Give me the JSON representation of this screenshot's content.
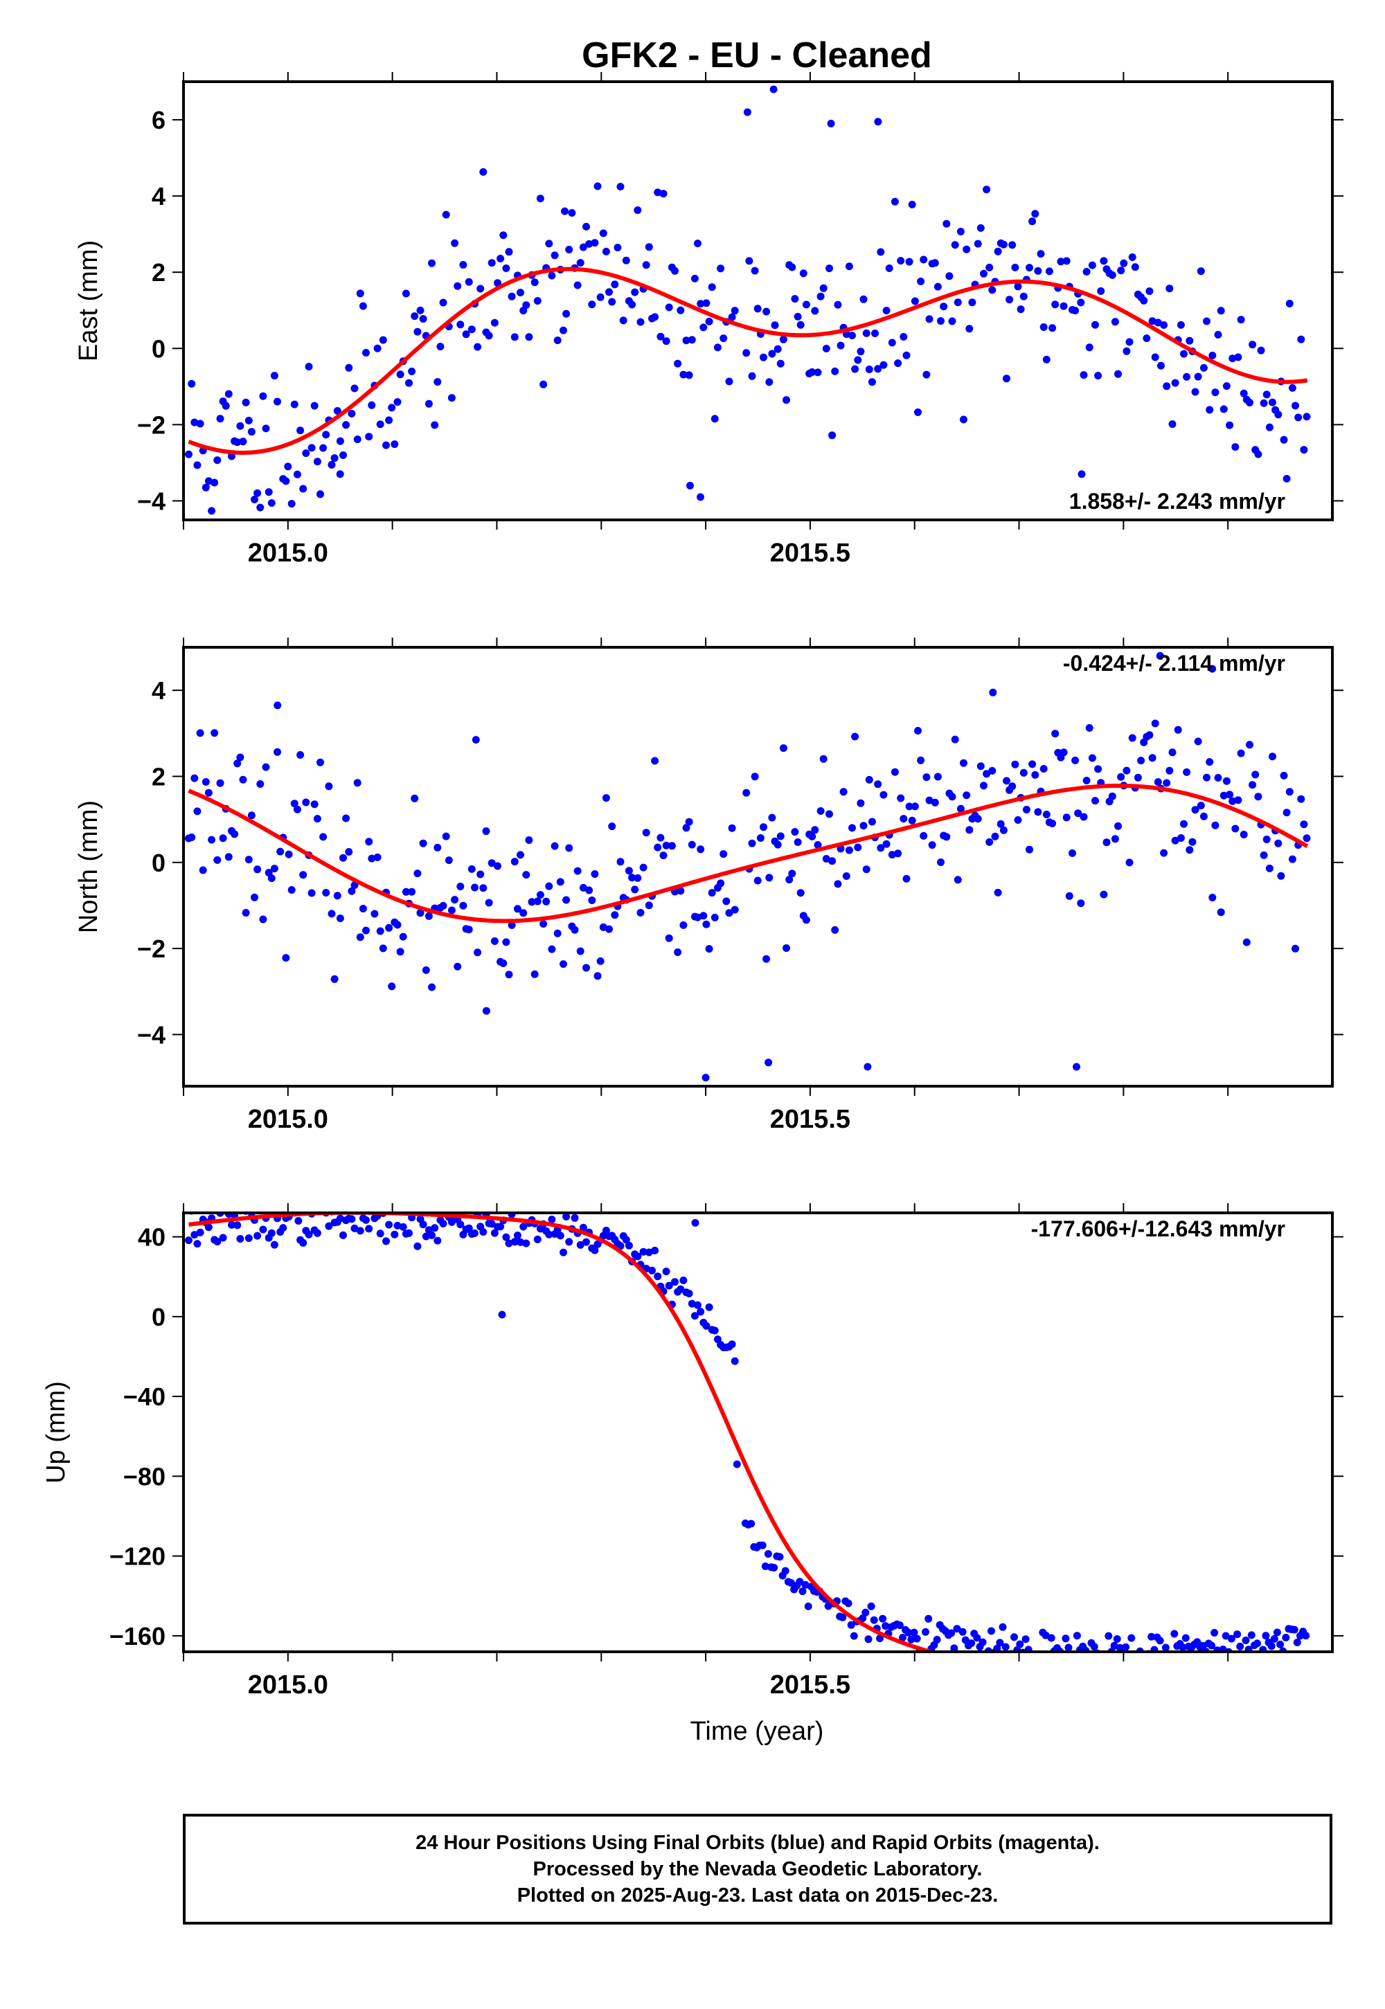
{
  "title": "GFK2  - EU - Cleaned",
  "xlabel": "Time (year)",
  "footer": {
    "line1": "24 Hour Positions Using Final Orbits (blue) and Rapid Orbits (magenta).",
    "line2": "Processed by the Nevada Geodetic Laboratory.",
    "line3": "Plotted on 2025-Aug-23. Last data on 2015-Dec-23."
  },
  "colors": {
    "points": "#0000ff",
    "fit": "#ff0000",
    "axes": "#000000"
  },
  "chart_data": [
    {
      "type": "scatter",
      "ylabel": "East (mm)",
      "rate_text": "1.858+/- 2.243 mm/yr",
      "xlim": [
        2014.9,
        2016.0
      ],
      "ylim": [
        -4.5,
        7.0
      ],
      "xticks": [
        2015.0,
        2015.5
      ],
      "yticks": [
        -4,
        -2,
        0,
        2,
        4,
        6
      ],
      "series": [
        {
          "role": "points",
          "x_start": 2014.905,
          "x_end": 2015.976,
          "gap": [
            2015.428,
            2015.438
          ],
          "noise": 1.2,
          "seed": 11,
          "outliers": [
            [
              2015.44,
              6.2
            ],
            [
              2015.465,
              6.8
            ],
            [
              2015.52,
              5.9
            ],
            [
              2015.565,
              5.95
            ],
            [
              2015.395,
              -3.9
            ],
            [
              2015.385,
              -3.6
            ],
            [
              2015.0,
              -3.1
            ],
            [
              2015.05,
              -3.3
            ],
            [
              2015.76,
              -3.3
            ],
            [
              2015.265,
              3.6
            ]
          ]
        },
        {
          "role": "fit",
          "model": "east"
        }
      ]
    },
    {
      "type": "scatter",
      "ylabel": "North (mm)",
      "rate_text": "-0.424+/- 2.114 mm/yr",
      "xlim": [
        2014.9,
        2016.0
      ],
      "ylim": [
        -5.2,
        5.0
      ],
      "xticks": [
        2015.0,
        2015.5
      ],
      "yticks": [
        -4,
        -2,
        0,
        2,
        4
      ],
      "series": [
        {
          "role": "points",
          "x_start": 2014.905,
          "x_end": 2015.976,
          "gap": [
            2015.428,
            2015.438
          ],
          "noise": 1.0,
          "seed": 23,
          "outliers": [
            [
              2014.99,
              3.65
            ],
            [
              2015.18,
              2.85
            ],
            [
              2015.19,
              -3.45
            ],
            [
              2015.4,
              -5.0
            ],
            [
              2015.46,
              -4.65
            ],
            [
              2015.555,
              -4.75
            ],
            [
              2015.675,
              3.95
            ],
            [
              2015.755,
              -4.75
            ],
            [
              2015.835,
              4.8
            ],
            [
              2015.885,
              4.5
            ]
          ]
        },
        {
          "role": "fit",
          "model": "north"
        }
      ]
    },
    {
      "type": "scatter",
      "ylabel": "Up (mm)",
      "rate_text": "-177.606+/-12.643 mm/yr",
      "xlim": [
        2014.9,
        2016.0
      ],
      "ylim": [
        -168,
        52
      ],
      "xticks": [
        2015.0,
        2015.5
      ],
      "yticks": [
        -160,
        -120,
        -80,
        -40,
        0,
        40
      ],
      "series": [
        {
          "role": "points",
          "seed": 37,
          "segments": [
            {
              "x_start": 2014.905,
              "x_end": 2015.428,
              "level": 28,
              "noise": 7
            },
            {
              "x_start": 2015.438,
              "x_end": 2015.976,
              "level": -143,
              "noise": 6
            }
          ],
          "outliers": [
            [
              2015.43,
              -74
            ],
            [
              2015.205,
              1
            ],
            [
              2015.01,
              48
            ],
            [
              2015.39,
              47
            ]
          ]
        },
        {
          "role": "fit",
          "model": "up"
        }
      ]
    }
  ]
}
